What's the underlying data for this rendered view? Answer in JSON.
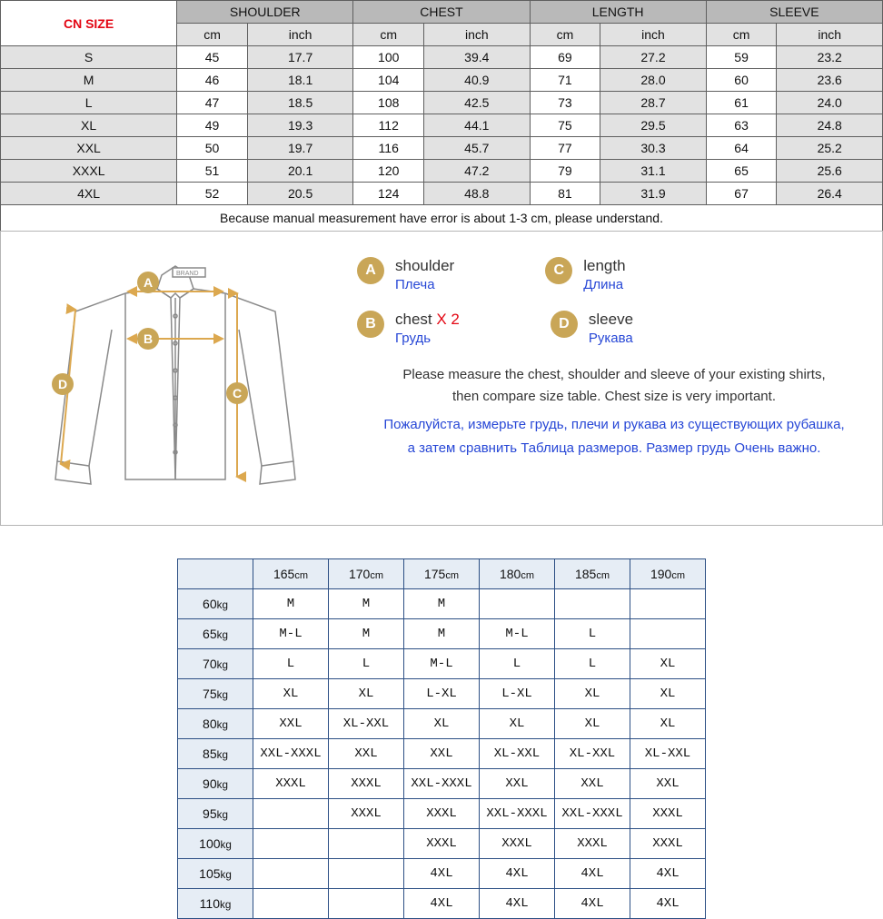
{
  "size_table": {
    "header_title": "CN SIZE",
    "header_title_color": "#e30613",
    "columns": [
      "SHOULDER",
      "CHEST",
      "LENGTH",
      "SLEEVE"
    ],
    "units": [
      "cm",
      "inch"
    ],
    "rows": [
      {
        "size": "S",
        "shoulder_cm": "45",
        "shoulder_in": "17.7",
        "chest_cm": "100",
        "chest_in": "39.4",
        "length_cm": "69",
        "length_in": "27.2",
        "sleeve_cm": "59",
        "sleeve_in": "23.2"
      },
      {
        "size": "M",
        "shoulder_cm": "46",
        "shoulder_in": "18.1",
        "chest_cm": "104",
        "chest_in": "40.9",
        "length_cm": "71",
        "length_in": "28.0",
        "sleeve_cm": "60",
        "sleeve_in": "23.6"
      },
      {
        "size": "L",
        "shoulder_cm": "47",
        "shoulder_in": "18.5",
        "chest_cm": "108",
        "chest_in": "42.5",
        "length_cm": "73",
        "length_in": "28.7",
        "sleeve_cm": "61",
        "sleeve_in": "24.0"
      },
      {
        "size": "XL",
        "shoulder_cm": "49",
        "shoulder_in": "19.3",
        "chest_cm": "112",
        "chest_in": "44.1",
        "length_cm": "75",
        "length_in": "29.5",
        "sleeve_cm": "63",
        "sleeve_in": "24.8"
      },
      {
        "size": "XXL",
        "shoulder_cm": "50",
        "shoulder_in": "19.7",
        "chest_cm": "116",
        "chest_in": "45.7",
        "length_cm": "77",
        "length_in": "30.3",
        "sleeve_cm": "64",
        "sleeve_in": "25.2"
      },
      {
        "size": "XXXL",
        "shoulder_cm": "51",
        "shoulder_in": "20.1",
        "chest_cm": "120",
        "chest_in": "47.2",
        "length_cm": "79",
        "length_in": "31.1",
        "sleeve_cm": "65",
        "sleeve_in": "25.6"
      },
      {
        "size": "4XL",
        "shoulder_cm": "52",
        "shoulder_in": "20.5",
        "chest_cm": "124",
        "chest_in": "48.8",
        "length_cm": "81",
        "length_in": "31.9",
        "sleeve_cm": "67",
        "sleeve_in": "26.4"
      }
    ],
    "note": "Because manual measurement have error is about 1-3 cm, please understand.",
    "colors": {
      "border": "#5f5f5f",
      "header_bg": "#b9b9b9",
      "unit_bg": "#e2e2e2"
    }
  },
  "diagram": {
    "brand_label": "BRAND",
    "legend": [
      {
        "letter": "A",
        "en": "shoulder",
        "ru": "Плеча",
        "x2": ""
      },
      {
        "letter": "C",
        "en": "length",
        "ru": "Длина",
        "x2": ""
      },
      {
        "letter": "B",
        "en": "chest",
        "ru": "Грудь",
        "x2": " X 2"
      },
      {
        "letter": "D",
        "en": "sleeve",
        "ru": "Рукава",
        "x2": ""
      }
    ],
    "circle_color": "#c9a657",
    "arrow_color": "#dca84f",
    "shirt_stroke": "#8a8a8a",
    "note_en_1": "Please measure the chest, shoulder and sleeve of your existing shirts,",
    "note_en_2": "then compare size table. Chest size is very important.",
    "note_ru_1": "Пожалуйста, измерьте грудь, плечи и рукава из существующих рубашка,",
    "note_ru_2": "а затем сравнить Таблица размеров. Размер грудь Очень важно."
  },
  "rec_table": {
    "heights": [
      "165cm",
      "170cm",
      "175cm",
      "180cm",
      "185cm",
      "190cm"
    ],
    "weights": [
      "60kg",
      "65kg",
      "70kg",
      "75kg",
      "80kg",
      "85kg",
      "90kg",
      "95kg",
      "100kg",
      "105kg",
      "110kg"
    ],
    "cells": [
      [
        "M",
        "M",
        "M",
        "",
        "",
        ""
      ],
      [
        "M-L",
        "M",
        "M",
        "M-L",
        "L",
        ""
      ],
      [
        "L",
        "L",
        "M-L",
        "L",
        "L",
        "XL"
      ],
      [
        "XL",
        "XL",
        "L-XL",
        "L-XL",
        "XL",
        "XL"
      ],
      [
        "XXL",
        "XL-XXL",
        "XL",
        "XL",
        "XL",
        "XL"
      ],
      [
        "XXL-XXXL",
        "XXL",
        "XXL",
        "XL-XXL",
        "XL-XXL",
        "XL-XXL"
      ],
      [
        "XXXL",
        "XXXL",
        "XXL-XXXL",
        "XXL",
        "XXL",
        "XXL"
      ],
      [
        "",
        "XXXL",
        "XXXL",
        "XXL-XXXL",
        "XXL-XXXL",
        "XXXL"
      ],
      [
        "",
        "",
        "XXXL",
        "XXXL",
        "XXXL",
        "XXXL"
      ],
      [
        "",
        "",
        "4XL",
        "4XL",
        "4XL",
        "4XL"
      ],
      [
        "",
        "",
        "4XL",
        "4XL",
        "4XL",
        "4XL"
      ]
    ],
    "colors": {
      "border": "#2c4f84",
      "header_bg": "#e6edf5"
    }
  }
}
